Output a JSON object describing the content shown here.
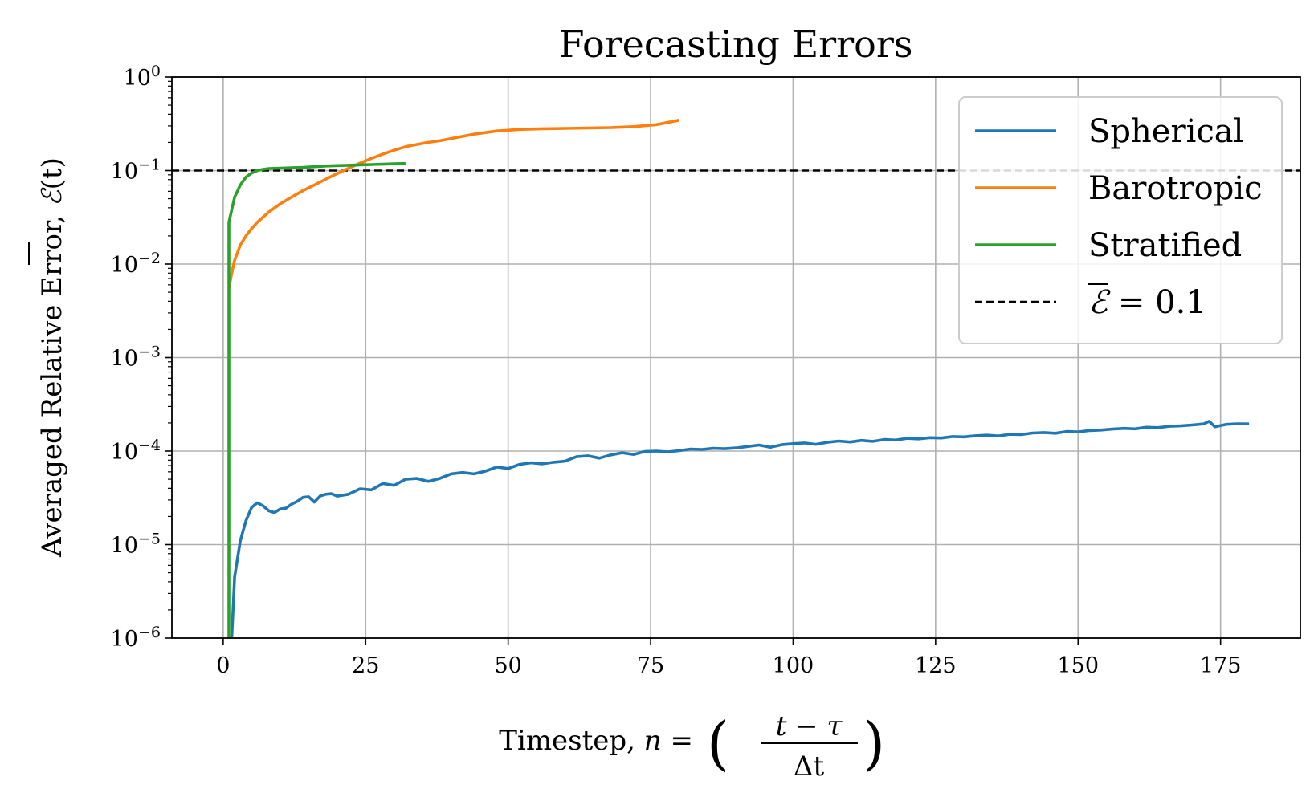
{
  "chart_data": {
    "type": "line",
    "title": "Forecasting Errors",
    "xlabel": "Timestep, n = ((t − τ) / Δt)",
    "xlabel_parts": {
      "prefix": "Timestep, ",
      "var": "n",
      "eq": " = ",
      "num": "t − τ",
      "den": "Δt"
    },
    "ylabel": "Averaged Relative Error, Ē(t)",
    "ylabel_parts": {
      "text": "Averaged Relative Error, ",
      "sym": "ℰ",
      "arg": "(t)"
    },
    "xlim": [
      -9,
      189
    ],
    "ylim": [
      1e-06,
      1
    ],
    "yscale": "log",
    "grid": true,
    "legend_position": "top-right",
    "xticks": [
      "0",
      "25",
      "50",
      "75",
      "100",
      "125",
      "150",
      "175"
    ],
    "xtick_values": [
      0,
      25,
      50,
      75,
      100,
      125,
      150,
      175
    ],
    "yticks": [
      {
        "base": "10",
        "exp": "−6",
        "value": 1e-06
      },
      {
        "base": "10",
        "exp": "−5",
        "value": 1e-05
      },
      {
        "base": "10",
        "exp": "−4",
        "value": 0.0001
      },
      {
        "base": "10",
        "exp": "−3",
        "value": 0.001
      },
      {
        "base": "10",
        "exp": "−2",
        "value": 0.01
      },
      {
        "base": "10",
        "exp": "−1",
        "value": 0.1
      },
      {
        "base": "10",
        "exp": "0",
        "value": 1
      }
    ],
    "series": [
      {
        "name": "Spherical",
        "color": "#1f77b4",
        "x": [
          1.5,
          2,
          3,
          4,
          5,
          6,
          7,
          8,
          9,
          10,
          11,
          12,
          13,
          14,
          15,
          16,
          17,
          18,
          19,
          20,
          22,
          24,
          26,
          28,
          30,
          32,
          34,
          36,
          38,
          40,
          42,
          44,
          46,
          48,
          50,
          52,
          54,
          56,
          58,
          60,
          62,
          64,
          66,
          68,
          70,
          72,
          74,
          76,
          78,
          80,
          82,
          84,
          86,
          88,
          90,
          92,
          94,
          96,
          98,
          100,
          102,
          104,
          106,
          108,
          110,
          112,
          114,
          116,
          118,
          120,
          122,
          124,
          126,
          128,
          130,
          132,
          134,
          136,
          138,
          140,
          142,
          144,
          146,
          148,
          150,
          152,
          154,
          156,
          158,
          160,
          162,
          164,
          166,
          168,
          170,
          172,
          173,
          174,
          176,
          178,
          180
        ],
        "values": [
          1e-06,
          4.5e-06,
          1.1e-05,
          1.8e-05,
          2.5e-05,
          2.8e-05,
          2.6e-05,
          2.3e-05,
          2.2e-05,
          2.4e-05,
          2.45e-05,
          2.7e-05,
          2.9e-05,
          3.2e-05,
          3.25e-05,
          2.85e-05,
          3.3e-05,
          3.45e-05,
          3.5e-05,
          3.3e-05,
          3.45e-05,
          3.95e-05,
          3.85e-05,
          4.5e-05,
          4.3e-05,
          5e-05,
          5.1e-05,
          4.75e-05,
          5.1e-05,
          5.7e-05,
          5.9e-05,
          5.7e-05,
          6.1e-05,
          6.75e-05,
          6.5e-05,
          7.2e-05,
          7.5e-05,
          7.3e-05,
          7.6e-05,
          7.8e-05,
          8.7e-05,
          8.9e-05,
          8.4e-05,
          9.1e-05,
          9.6e-05,
          9.2e-05,
          9.9e-05,
          0.0001,
          9.8e-05,
          0.000101,
          0.000105,
          0.000104,
          0.000107,
          0.000106,
          0.000108,
          0.000112,
          0.000116,
          0.00011,
          0.000117,
          0.00012,
          0.000122,
          0.000118,
          0.000124,
          0.000128,
          0.000125,
          0.00013,
          0.000127,
          0.000133,
          0.000131,
          0.000137,
          0.000135,
          0.000139,
          0.000138,
          0.000143,
          0.000142,
          0.000146,
          0.000148,
          0.000145,
          0.000151,
          0.00015,
          0.000156,
          0.000158,
          0.000155,
          0.000162,
          0.00016,
          0.000166,
          0.000168,
          0.000172,
          0.000175,
          0.000173,
          0.00018,
          0.000178,
          0.000184,
          0.000186,
          0.00019,
          0.000195,
          0.000208,
          0.000182,
          0.000193,
          0.000196,
          0.000195
        ]
      },
      {
        "name": "Barotropic",
        "color": "#ff7f0e",
        "x": [
          1,
          1.5,
          2,
          3,
          4,
          5,
          6,
          8,
          10,
          12,
          14,
          16,
          18,
          20,
          22,
          24,
          26,
          28,
          30,
          32,
          34,
          36,
          38,
          40,
          44,
          48,
          52,
          56,
          60,
          64,
          68,
          72,
          76,
          80
        ],
        "values": [
          0.0055,
          0.008,
          0.011,
          0.016,
          0.02,
          0.024,
          0.028,
          0.036,
          0.044,
          0.052,
          0.061,
          0.07,
          0.081,
          0.093,
          0.106,
          0.12,
          0.135,
          0.15,
          0.165,
          0.18,
          0.19,
          0.2,
          0.208,
          0.22,
          0.245,
          0.265,
          0.275,
          0.28,
          0.282,
          0.285,
          0.288,
          0.295,
          0.31,
          0.345
        ]
      },
      {
        "name": "Stratified",
        "color": "#2ca02c",
        "x": [
          1,
          1.01,
          2,
          3,
          4,
          5,
          6,
          7,
          8,
          10,
          12,
          14,
          16,
          18,
          20,
          22,
          24,
          26,
          28,
          30,
          32
        ],
        "values": [
          1e-06,
          0.028,
          0.052,
          0.07,
          0.085,
          0.094,
          0.1,
          0.103,
          0.105,
          0.106,
          0.107,
          0.108,
          0.11,
          0.112,
          0.113,
          0.114,
          0.115,
          0.116,
          0.117,
          0.118,
          0.119
        ]
      }
    ],
    "hlines": [
      {
        "name": "Ē = 0.1",
        "label_sym": "ℰ",
        "label_rest": " = 0.1",
        "value": 0.1,
        "color": "#000000",
        "style": "dashed"
      }
    ]
  }
}
